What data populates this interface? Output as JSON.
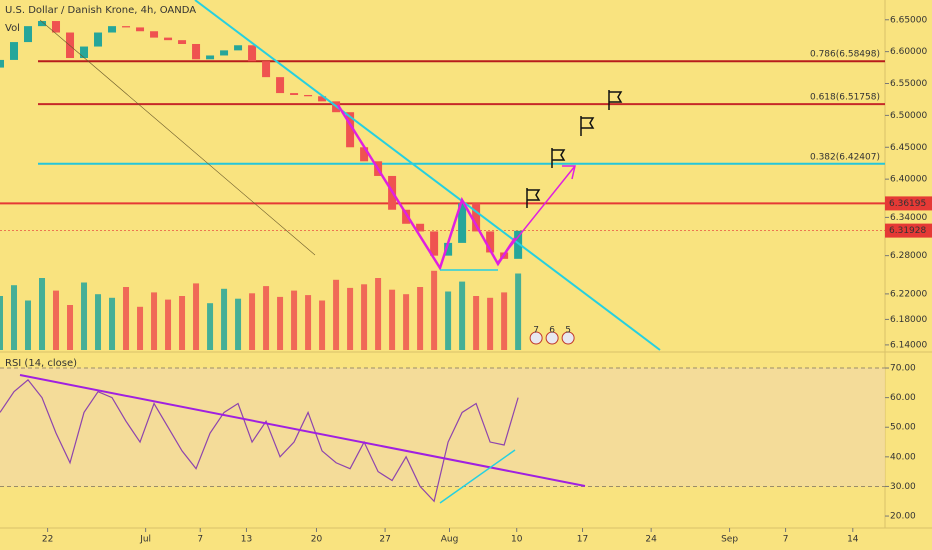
{
  "chart_data": [
    {
      "type": "candlestick",
      "title": "U.S. Dollar / Danish Krone, 4h, OANDA",
      "volume_label": "Vol",
      "x": [
        0,
        1,
        2,
        3,
        4,
        5,
        6,
        7,
        8,
        9,
        10,
        11,
        12,
        13,
        14,
        15,
        16,
        17,
        18,
        19,
        20,
        21,
        22,
        23,
        24,
        25,
        26,
        27,
        28,
        29,
        30,
        31,
        32,
        33,
        34,
        35,
        36,
        37
      ],
      "open": [
        6.575,
        6.587,
        6.615,
        6.64,
        6.648,
        6.63,
        6.59,
        6.608,
        6.63,
        6.64,
        6.638,
        6.632,
        6.622,
        6.618,
        6.612,
        6.588,
        6.594,
        6.602,
        6.61,
        6.585,
        6.56,
        6.535,
        6.532,
        6.53,
        6.522,
        6.505,
        6.45,
        6.428,
        6.405,
        6.352,
        6.33,
        6.318,
        6.28,
        6.3,
        6.362,
        6.318,
        6.285,
        6.275
      ],
      "close": [
        6.587,
        6.615,
        6.64,
        6.648,
        6.63,
        6.59,
        6.608,
        6.63,
        6.64,
        6.638,
        6.632,
        6.622,
        6.618,
        6.612,
        6.588,
        6.594,
        6.602,
        6.61,
        6.585,
        6.56,
        6.535,
        6.532,
        6.53,
        6.522,
        6.505,
        6.45,
        6.428,
        6.405,
        6.352,
        6.33,
        6.318,
        6.28,
        6.3,
        6.362,
        6.318,
        6.285,
        6.275,
        6.319
      ],
      "volume": [
        60,
        72,
        55,
        80,
        66,
        50,
        75,
        62,
        58,
        70,
        48,
        64,
        56,
        60,
        74,
        52,
        68,
        57,
        63,
        71,
        59,
        66,
        61,
        55,
        78,
        69,
        73,
        80,
        67,
        62,
        70,
        88,
        65,
        76,
        60,
        58,
        64,
        85
      ],
      "vlim": [
        0,
        100
      ],
      "up_color": "#26a69a",
      "down_color": "#ef5350",
      "xlim": [
        0,
        63.2
      ],
      "ylim": [
        6.132,
        6.681
      ],
      "yticks": [
        {
          "value": 6.65,
          "label": "6.65000"
        },
        {
          "value": 6.6,
          "label": "6.60000"
        },
        {
          "value": 6.55,
          "label": "6.55000"
        },
        {
          "value": 6.5,
          "label": "6.50000"
        },
        {
          "value": 6.45,
          "label": "6.45000"
        },
        {
          "value": 6.4,
          "label": "6.40000"
        },
        {
          "value": 6.34,
          "label": "6.34000"
        },
        {
          "value": 6.28,
          "label": "6.28000"
        },
        {
          "value": 6.22,
          "label": "6.22000"
        },
        {
          "value": 6.18,
          "label": "6.18000"
        },
        {
          "value": 6.14,
          "label": "6.14000"
        }
      ],
      "fib_levels": [
        {
          "value": 6.58498,
          "label": "0.786(6.58498)",
          "color": "#b71c1c"
        },
        {
          "value": 6.51758,
          "label": "0.618(6.51758)",
          "color": "#c62828"
        },
        {
          "value": 6.42407,
          "label": "0.382(6.42407)",
          "color": "#26c6da"
        }
      ],
      "resistance": {
        "value": 6.36195,
        "label": "6.36195",
        "color": "#e53935"
      },
      "last_price": {
        "value": 6.31928,
        "label": "6.31928",
        "color": "#e53935"
      },
      "event_labels": [
        "7",
        "6",
        "5"
      ]
    },
    {
      "type": "line",
      "title": "RSI (14, close)",
      "x": [
        0,
        1,
        2,
        3,
        4,
        5,
        6,
        7,
        8,
        9,
        10,
        11,
        12,
        13,
        14,
        15,
        16,
        17,
        18,
        19,
        20,
        21,
        22,
        23,
        24,
        25,
        26,
        27,
        28,
        29,
        30,
        31,
        32,
        33,
        34,
        35,
        36,
        37
      ],
      "values": [
        55,
        62,
        66,
        60,
        48,
        38,
        55,
        62,
        60,
        52,
        45,
        58,
        50,
        42,
        36,
        48,
        55,
        58,
        45,
        52,
        40,
        45,
        55,
        42,
        38,
        36,
        45,
        35,
        32,
        40,
        30,
        25,
        45,
        55,
        58,
        45,
        44,
        60
      ],
      "color": "#8e44ad",
      "band": [
        30,
        70
      ],
      "xlim": [
        0,
        63.2
      ],
      "ylim": [
        16.3,
        74.4
      ],
      "yticks": [
        {
          "value": 70,
          "label": "70.00"
        },
        {
          "value": 60,
          "label": "60.00"
        },
        {
          "value": 50,
          "label": "50.00"
        },
        {
          "value": 40,
          "label": "40.00"
        },
        {
          "value": 30,
          "label": "30.00"
        },
        {
          "value": 20,
          "label": "20.00"
        }
      ],
      "xticks": [
        {
          "value": 3.4,
          "label": "22"
        },
        {
          "value": 10.4,
          "label": "Jul"
        },
        {
          "value": 14.3,
          "label": "7"
        },
        {
          "value": 17.6,
          "label": "13"
        },
        {
          "value": 22.6,
          "label": "20"
        },
        {
          "value": 27.5,
          "label": "27"
        },
        {
          "value": 32.1,
          "label": "Aug"
        },
        {
          "value": 36.9,
          "label": "10"
        },
        {
          "value": 41.6,
          "label": "17"
        },
        {
          "value": 46.5,
          "label": "24"
        },
        {
          "value": 52.1,
          "label": "Sep"
        },
        {
          "value": 56.1,
          "label": "7"
        },
        {
          "value": 60.9,
          "label": "14"
        }
      ]
    }
  ]
}
